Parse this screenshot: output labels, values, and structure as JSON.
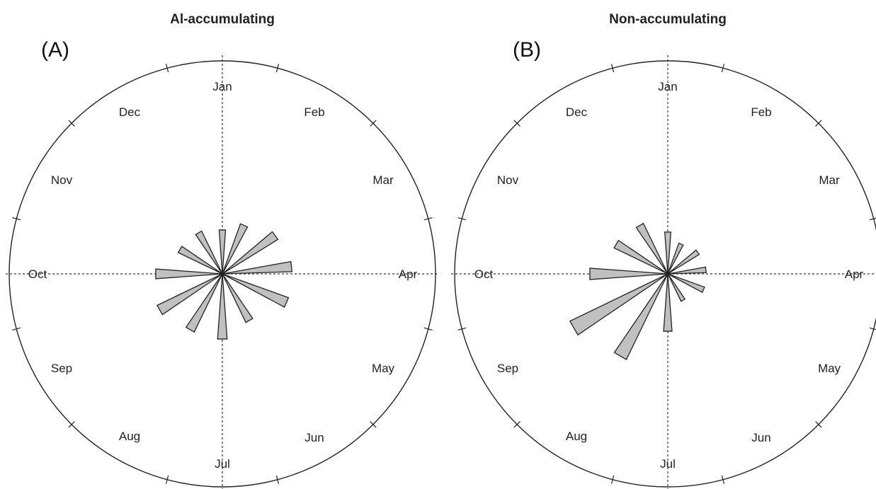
{
  "chart_data": [
    {
      "type": "rose",
      "title": "Al-accumulating",
      "panel_label": "(A)",
      "months": [
        "Jan",
        "Feb",
        "Mar",
        "Apr",
        "May",
        "Jun",
        "Jul",
        "Aug",
        "Sep",
        "Oct",
        "Nov",
        "Dec"
      ],
      "bins": [
        {
          "direction_deg": 0,
          "value": 6.2
        },
        {
          "direction_deg": 24,
          "value": 7.5
        },
        {
          "direction_deg": 54,
          "value": 9.2
        },
        {
          "direction_deg": 84,
          "value": 9.8
        },
        {
          "direction_deg": 114,
          "value": 9.9
        },
        {
          "direction_deg": 150,
          "value": 7.6
        },
        {
          "direction_deg": 180,
          "value": 9.2
        },
        {
          "direction_deg": 210,
          "value": 9.1
        },
        {
          "direction_deg": 240,
          "value": 10.2
        },
        {
          "direction_deg": 270,
          "value": 9.4
        },
        {
          "direction_deg": 300,
          "value": 6.9
        },
        {
          "direction_deg": 330,
          "value": 6.7
        }
      ],
      "rmax": 30,
      "grid": false
    },
    {
      "type": "rose",
      "title": "Non-accumulating",
      "panel_label": "(B)",
      "months": [
        "Jan",
        "Feb",
        "Mar",
        "Apr",
        "May",
        "Jun",
        "Jul",
        "Aug",
        "Sep",
        "Oct",
        "Nov",
        "Dec"
      ],
      "bins": [
        {
          "direction_deg": 0,
          "value": 5.9
        },
        {
          "direction_deg": 24,
          "value": 4.6
        },
        {
          "direction_deg": 54,
          "value": 5.2
        },
        {
          "direction_deg": 84,
          "value": 5.4
        },
        {
          "direction_deg": 114,
          "value": 5.5
        },
        {
          "direction_deg": 150,
          "value": 4.3
        },
        {
          "direction_deg": 180,
          "value": 8.1
        },
        {
          "direction_deg": 210,
          "value": 13.4
        },
        {
          "direction_deg": 240,
          "value": 15.3
        },
        {
          "direction_deg": 270,
          "value": 11.0
        },
        {
          "direction_deg": 300,
          "value": 8.4
        },
        {
          "direction_deg": 330,
          "value": 7.9
        }
      ],
      "rmax": 30,
      "grid": false
    }
  ]
}
